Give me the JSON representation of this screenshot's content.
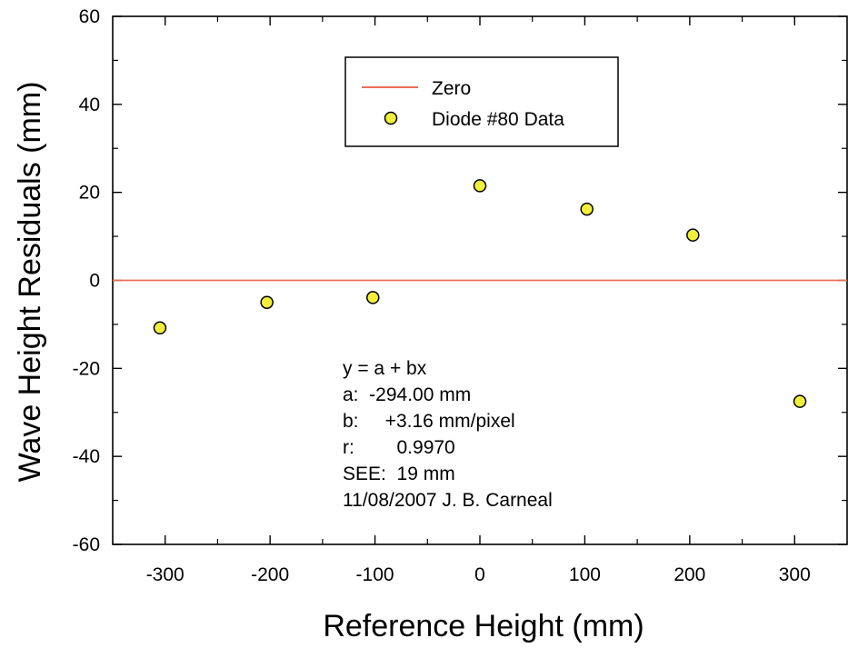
{
  "chart_data": {
    "type": "scatter",
    "xlabel": "Reference Height (mm)",
    "ylabel": "Wave Height Residuals (mm)",
    "xlim": [
      -350,
      350
    ],
    "ylim": [
      -60,
      60
    ],
    "x_ticks": [
      -300,
      -200,
      -100,
      0,
      100,
      200,
      300
    ],
    "y_ticks": [
      -60,
      -40,
      -20,
      0,
      20,
      40,
      60
    ],
    "grid": false,
    "legend_position": "top-center",
    "series": [
      {
        "name": "Zero",
        "kind": "line",
        "color": "#e8705a",
        "x": [
          -350,
          350
        ],
        "y": [
          0,
          0
        ]
      },
      {
        "name": "Diode #80 Data",
        "kind": "scatter",
        "color": "#f2ef3a",
        "x": [
          -305,
          -203,
          -102,
          0,
          102,
          203,
          305
        ],
        "y": [
          -10.8,
          -5.0,
          -3.9,
          21.5,
          16.2,
          10.3,
          -27.5
        ]
      }
    ],
    "annotations": [
      "y = a + bx",
      "a:  -294.00 mm",
      "b:     +3.16 mm/pixel",
      "r:        0.9970",
      "SEE:  19 mm",
      "11/08/2007 J. B. Carneal"
    ]
  }
}
